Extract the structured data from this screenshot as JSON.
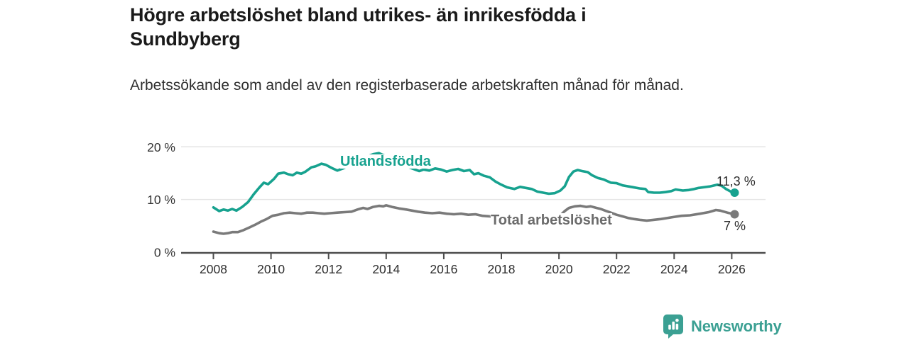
{
  "chart_data": {
    "type": "line",
    "title": "Högre arbetslöshet bland utrikes- än inrikesfödda i Sundbyberg",
    "subtitle": "Arbetssökande som andel av den registerbaserade arbetskraften månad för månad.",
    "x_axis": {
      "tick_labels": [
        "2008",
        "2010",
        "2012",
        "2014",
        "2016",
        "2018",
        "2020",
        "2022",
        "2024",
        "2026"
      ],
      "tick_values": [
        2008,
        2010,
        2012,
        2014,
        2016,
        2018,
        2020,
        2022,
        2024,
        2026
      ],
      "range": [
        2006.9,
        2027.2
      ]
    },
    "y_axis": {
      "tick_labels": [
        "0 %",
        "10 %",
        "20 %"
      ],
      "tick_values": [
        0,
        10,
        20
      ],
      "range": [
        0,
        20
      ],
      "unit": "%",
      "grid": true
    },
    "legend_position": "inline-labels-on-chart",
    "series": [
      {
        "name": "Utlandsfödda",
        "color": "#17a28f",
        "end_label": "11,3 %",
        "points": [
          [
            2008.0,
            8.5
          ],
          [
            2008.2,
            7.8
          ],
          [
            2008.35,
            8.1
          ],
          [
            2008.5,
            7.9
          ],
          [
            2008.65,
            8.2
          ],
          [
            2008.8,
            7.9
          ],
          [
            2009.0,
            8.6
          ],
          [
            2009.2,
            9.5
          ],
          [
            2009.4,
            11.0
          ],
          [
            2009.6,
            12.3
          ],
          [
            2009.75,
            13.2
          ],
          [
            2009.9,
            12.9
          ],
          [
            2010.1,
            13.9
          ],
          [
            2010.25,
            14.9
          ],
          [
            2010.45,
            15.1
          ],
          [
            2010.6,
            14.8
          ],
          [
            2010.75,
            14.6
          ],
          [
            2010.9,
            15.1
          ],
          [
            2011.05,
            14.9
          ],
          [
            2011.2,
            15.3
          ],
          [
            2011.4,
            16.1
          ],
          [
            2011.55,
            16.3
          ],
          [
            2011.75,
            16.8
          ],
          [
            2011.9,
            16.6
          ],
          [
            2012.1,
            16.0
          ],
          [
            2012.3,
            15.5
          ],
          [
            2012.5,
            15.9
          ],
          [
            2012.75,
            16.5
          ],
          [
            2013.0,
            17.3
          ],
          [
            2013.3,
            18.1
          ],
          [
            2013.55,
            18.6
          ],
          [
            2013.75,
            18.8
          ],
          [
            2013.95,
            18.3
          ],
          [
            2014.2,
            17.6
          ],
          [
            2014.5,
            16.8
          ],
          [
            2014.75,
            16.2
          ],
          [
            2015.0,
            15.7
          ],
          [
            2015.15,
            15.4
          ],
          [
            2015.3,
            15.7
          ],
          [
            2015.5,
            15.5
          ],
          [
            2015.7,
            15.9
          ],
          [
            2015.9,
            15.7
          ],
          [
            2016.1,
            15.3
          ],
          [
            2016.3,
            15.6
          ],
          [
            2016.5,
            15.8
          ],
          [
            2016.7,
            15.4
          ],
          [
            2016.9,
            15.6
          ],
          [
            2017.05,
            14.8
          ],
          [
            2017.2,
            15.0
          ],
          [
            2017.4,
            14.5
          ],
          [
            2017.6,
            14.2
          ],
          [
            2017.8,
            13.4
          ],
          [
            2018.0,
            12.8
          ],
          [
            2018.2,
            12.3
          ],
          [
            2018.45,
            12.0
          ],
          [
            2018.65,
            12.4
          ],
          [
            2018.85,
            12.2
          ],
          [
            2019.05,
            12.0
          ],
          [
            2019.25,
            11.5
          ],
          [
            2019.45,
            11.3
          ],
          [
            2019.65,
            11.1
          ],
          [
            2019.85,
            11.2
          ],
          [
            2020.05,
            11.7
          ],
          [
            2020.2,
            12.5
          ],
          [
            2020.35,
            14.3
          ],
          [
            2020.5,
            15.3
          ],
          [
            2020.65,
            15.6
          ],
          [
            2020.8,
            15.4
          ],
          [
            2021.0,
            15.2
          ],
          [
            2021.15,
            14.6
          ],
          [
            2021.35,
            14.1
          ],
          [
            2021.55,
            13.8
          ],
          [
            2021.8,
            13.2
          ],
          [
            2022.0,
            13.1
          ],
          [
            2022.2,
            12.7
          ],
          [
            2022.5,
            12.4
          ],
          [
            2022.8,
            12.1
          ],
          [
            2023.0,
            12.0
          ],
          [
            2023.1,
            11.4
          ],
          [
            2023.3,
            11.3
          ],
          [
            2023.5,
            11.3
          ],
          [
            2023.7,
            11.4
          ],
          [
            2023.9,
            11.6
          ],
          [
            2024.05,
            11.9
          ],
          [
            2024.3,
            11.7
          ],
          [
            2024.5,
            11.8
          ],
          [
            2024.7,
            12.0
          ],
          [
            2024.85,
            12.2
          ],
          [
            2025.0,
            12.3
          ],
          [
            2025.25,
            12.5
          ],
          [
            2025.5,
            12.8
          ],
          [
            2025.65,
            12.6
          ],
          [
            2025.8,
            12.0
          ],
          [
            2026.0,
            11.4
          ],
          [
            2026.1,
            11.3
          ]
        ]
      },
      {
        "name": "Total arbetslöshet",
        "color": "#7a7a7a",
        "end_label": "7 %",
        "points": [
          [
            2008.0,
            3.9
          ],
          [
            2008.2,
            3.6
          ],
          [
            2008.35,
            3.5
          ],
          [
            2008.5,
            3.6
          ],
          [
            2008.65,
            3.8
          ],
          [
            2008.85,
            3.8
          ],
          [
            2009.05,
            4.2
          ],
          [
            2009.25,
            4.7
          ],
          [
            2009.45,
            5.2
          ],
          [
            2009.65,
            5.8
          ],
          [
            2009.85,
            6.3
          ],
          [
            2010.05,
            6.9
          ],
          [
            2010.25,
            7.1
          ],
          [
            2010.45,
            7.4
          ],
          [
            2010.65,
            7.5
          ],
          [
            2010.85,
            7.4
          ],
          [
            2011.05,
            7.3
          ],
          [
            2011.25,
            7.5
          ],
          [
            2011.45,
            7.5
          ],
          [
            2011.65,
            7.4
          ],
          [
            2011.85,
            7.3
          ],
          [
            2012.05,
            7.4
          ],
          [
            2012.3,
            7.5
          ],
          [
            2012.55,
            7.6
          ],
          [
            2012.8,
            7.7
          ],
          [
            2013.0,
            8.1
          ],
          [
            2013.2,
            8.4
          ],
          [
            2013.35,
            8.2
          ],
          [
            2013.55,
            8.6
          ],
          [
            2013.75,
            8.8
          ],
          [
            2013.9,
            8.7
          ],
          [
            2014.0,
            8.9
          ],
          [
            2014.2,
            8.6
          ],
          [
            2014.45,
            8.3
          ],
          [
            2014.7,
            8.1
          ],
          [
            2014.9,
            7.9
          ],
          [
            2015.1,
            7.7
          ],
          [
            2015.35,
            7.5
          ],
          [
            2015.6,
            7.4
          ],
          [
            2015.85,
            7.5
          ],
          [
            2016.1,
            7.3
          ],
          [
            2016.35,
            7.2
          ],
          [
            2016.6,
            7.3
          ],
          [
            2016.85,
            7.1
          ],
          [
            2017.1,
            7.2
          ],
          [
            2017.35,
            6.9
          ],
          [
            2017.6,
            6.8
          ],
          [
            2017.85,
            6.7
          ],
          [
            2018.1,
            6.6
          ],
          [
            2018.4,
            6.5
          ],
          [
            2018.7,
            6.4
          ],
          [
            2019.0,
            6.3
          ],
          [
            2019.3,
            6.3
          ],
          [
            2019.6,
            6.4
          ],
          [
            2019.85,
            6.6
          ],
          [
            2020.05,
            7.0
          ],
          [
            2020.2,
            7.8
          ],
          [
            2020.35,
            8.4
          ],
          [
            2020.55,
            8.7
          ],
          [
            2020.75,
            8.8
          ],
          [
            2020.95,
            8.6
          ],
          [
            2021.1,
            8.7
          ],
          [
            2021.3,
            8.4
          ],
          [
            2021.45,
            8.2
          ],
          [
            2021.6,
            7.9
          ],
          [
            2021.8,
            7.5
          ],
          [
            2022.0,
            7.1
          ],
          [
            2022.2,
            6.8
          ],
          [
            2022.4,
            6.5
          ],
          [
            2022.6,
            6.3
          ],
          [
            2022.85,
            6.1
          ],
          [
            2023.05,
            6.0
          ],
          [
            2023.25,
            6.1
          ],
          [
            2023.55,
            6.3
          ],
          [
            2023.9,
            6.6
          ],
          [
            2024.25,
            6.9
          ],
          [
            2024.55,
            7.0
          ],
          [
            2024.9,
            7.3
          ],
          [
            2025.2,
            7.6
          ],
          [
            2025.45,
            8.0
          ],
          [
            2025.6,
            7.9
          ],
          [
            2025.85,
            7.5
          ],
          [
            2026.1,
            7.2
          ]
        ]
      }
    ]
  },
  "branding": {
    "name": "Newsworthy",
    "color": "#3ba093",
    "logo_icon": "bar-chart-speech-bubble"
  }
}
